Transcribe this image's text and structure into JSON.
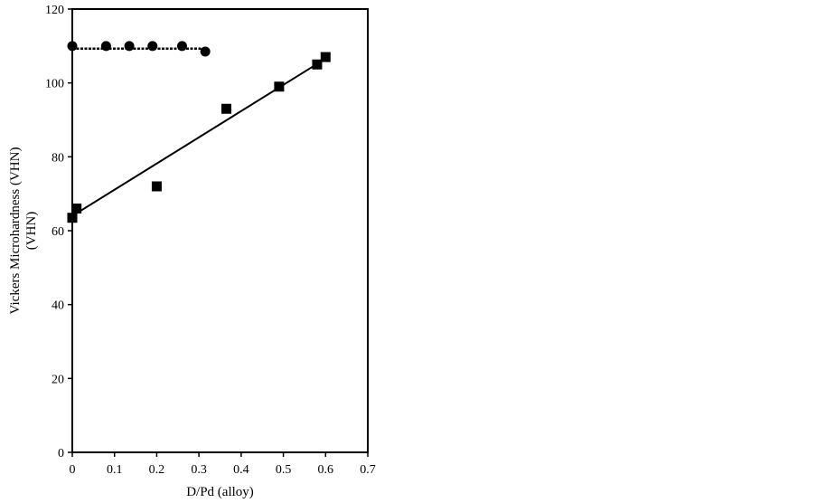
{
  "chart_data": {
    "type": "scatter",
    "xlabel": "D/Pd (alloy)",
    "ylabel_lines": [
      "Vickers Microhardness (VHN)",
      "(VHN)"
    ],
    "xlim": [
      0,
      0.7
    ],
    "ylim": [
      0,
      120
    ],
    "x_ticks": [
      {
        "value": 0,
        "label": "0"
      },
      {
        "value": 0.1,
        "label": "0.1"
      },
      {
        "value": 0.2,
        "label": "0.2"
      },
      {
        "value": 0.3,
        "label": "0.3"
      },
      {
        "value": 0.4,
        "label": "0.4"
      },
      {
        "value": 0.5,
        "label": "0.5"
      },
      {
        "value": 0.6,
        "label": "0.6"
      },
      {
        "value": 0.7,
        "label": "0.7"
      }
    ],
    "y_ticks": [
      {
        "value": 0,
        "label": "0"
      },
      {
        "value": 20,
        "label": "20"
      },
      {
        "value": 40,
        "label": "40"
      },
      {
        "value": 60,
        "label": "60"
      },
      {
        "value": 80,
        "label": "80"
      },
      {
        "value": 100,
        "label": "100"
      },
      {
        "value": 120,
        "label": "120"
      }
    ],
    "grid": false,
    "series": [
      {
        "marker": "circle",
        "color": "#000000",
        "points": [
          {
            "x": 0.0,
            "y": 110
          },
          {
            "x": 0.08,
            "y": 110
          },
          {
            "x": 0.135,
            "y": 110
          },
          {
            "x": 0.19,
            "y": 110
          },
          {
            "x": 0.26,
            "y": 110
          },
          {
            "x": 0.315,
            "y": 108.5
          }
        ],
        "fit": {
          "style": "dashed",
          "x": [
            0.0,
            0.32
          ],
          "y": [
            109.3,
            109.3
          ]
        }
      },
      {
        "marker": "square",
        "color": "#000000",
        "points": [
          {
            "x": 0.0,
            "y": 63.5
          },
          {
            "x": 0.01,
            "y": 66
          },
          {
            "x": 0.2,
            "y": 72
          },
          {
            "x": 0.365,
            "y": 93
          },
          {
            "x": 0.49,
            "y": 99
          },
          {
            "x": 0.58,
            "y": 105
          },
          {
            "x": 0.6,
            "y": 107
          }
        ],
        "fit": {
          "style": "solid",
          "x": [
            0.0,
            0.585
          ],
          "y": [
            64.0,
            105.5
          ]
        }
      }
    ]
  }
}
